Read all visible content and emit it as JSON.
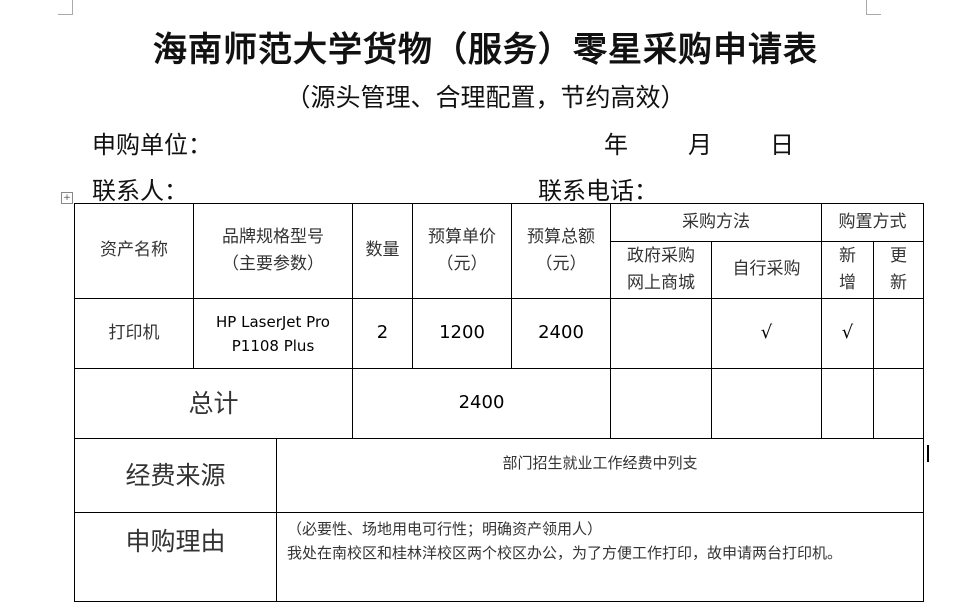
{
  "title": "海南师范大学货物（服务）零星采购申请表",
  "subtitle": "（源头管理、合理配置，节约高效）",
  "applicant_unit_label": "申购单位：",
  "date": {
    "year": "年",
    "month": "月",
    "day": "日"
  },
  "contact_label": "联系人：",
  "phone_label": "联系电话：",
  "headers": {
    "asset": "资产名称",
    "brand": "品牌规格型号",
    "brand_sub": "（主要参数）",
    "qty": "数量",
    "unit_price": "预算单价",
    "unit_price_sub": "（元）",
    "total": "预算总额",
    "total_sub": "（元）",
    "method": "采购方法",
    "gov": "政府采购网上商城",
    "self": "自行采购",
    "buy_type": "购置方式",
    "new": "新增",
    "update": "更新"
  },
  "row": {
    "asset": "打印机",
    "brand": "HP LaserJet Pro P1108 Plus",
    "qty": "2",
    "unit_price": "1200",
    "total": "2400",
    "gov": "",
    "self": "√",
    "new": "√",
    "update": ""
  },
  "sum": {
    "label": "总计",
    "value": "2400"
  },
  "funding": {
    "label": "经费来源",
    "value": "部门招生就业工作经费中列支"
  },
  "reason": {
    "label": "申购理由",
    "hint": "（必要性、场地用电可行性；明确资产领用人）",
    "value": "我处在南校区和桂林洋校区两个校区办公，为了方便工作打印，故申请两台打印机。"
  }
}
